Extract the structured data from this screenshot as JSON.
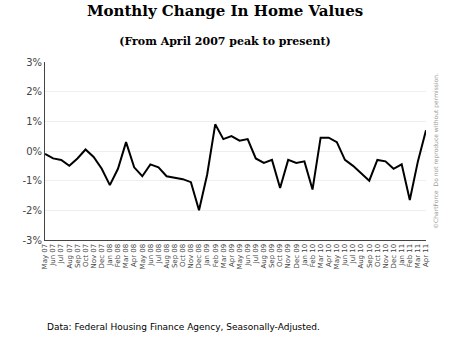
{
  "chart_data": {
    "type": "line",
    "title": "Monthly Change In Home Values",
    "subtitle": "(From April 2007 peak to present)",
    "annotations": [
      "Data: Federal Housing Finance Agency, Seasonally-Adjusted.",
      "©ChartForce  Do not reproduce without permission."
    ],
    "categories": [
      "May 07",
      "Jun 07",
      "Jul 07",
      "Aug 07",
      "Sep 07",
      "Oct 07",
      "Nov 07",
      "Dec 07",
      "Jan 08",
      "Feb 08",
      "Mar 08",
      "Apr 08",
      "May 08",
      "Jun 08",
      "Jul 08",
      "Aug 08",
      "Sep 08",
      "Oct 08",
      "Nov 08",
      "Dec 08",
      "Jan 09",
      "Feb 09",
      "Mar 09",
      "Apr 09",
      "May 09",
      "Jun 09",
      "Jul 09",
      "Aug 09",
      "Sep 09",
      "Oct 09",
      "Nov 09",
      "Dec 09",
      "Jan 10",
      "Feb 10",
      "Mar 10",
      "Apr 10",
      "May 10",
      "Jun 10",
      "Jul 10",
      "Aug 10",
      "Sep 10",
      "Oct 10",
      "Nov 10",
      "Dec 10",
      "Jan 11",
      "Feb 11",
      "Mar 11",
      "Apr 11"
    ],
    "values": [
      -0.1,
      -0.25,
      -0.3,
      -0.5,
      -0.25,
      0.05,
      -0.2,
      -0.6,
      -1.15,
      -0.6,
      0.3,
      -0.55,
      -0.85,
      -0.45,
      -0.55,
      -0.85,
      -0.9,
      -0.95,
      -1.05,
      -2.0,
      -0.8,
      0.9,
      0.4,
      0.5,
      0.35,
      0.4,
      -0.25,
      -0.4,
      -0.3,
      -1.25,
      -0.3,
      -0.4,
      -0.35,
      -1.3,
      0.45,
      0.45,
      0.3,
      -0.3,
      -0.5,
      -0.75,
      -1.0,
      -0.3,
      -0.35,
      -0.6,
      -0.45,
      -1.65,
      -0.35,
      0.7
    ],
    "color": "#000000",
    "ylim": [
      -3,
      3
    ],
    "yticks": [
      {
        "value": -3,
        "label": "-3%"
      },
      {
        "value": -2,
        "label": "-2%"
      },
      {
        "value": -1,
        "label": "-1%"
      },
      {
        "value": 0,
        "label": "0%"
      },
      {
        "value": 1,
        "label": "1%"
      },
      {
        "value": 2,
        "label": "2%"
      },
      {
        "value": 3,
        "label": "3%"
      }
    ],
    "grid": true
  }
}
